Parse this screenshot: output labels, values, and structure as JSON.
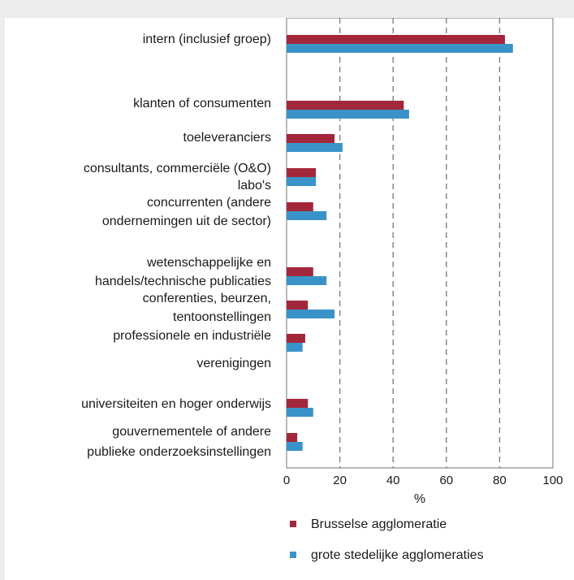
{
  "chart_data": {
    "type": "bar",
    "orientation": "horizontal",
    "xlabel": "%",
    "xlim": [
      0,
      100
    ],
    "xticks": [
      "0",
      "20",
      "40",
      "60",
      "80",
      "100"
    ],
    "grid": "vertical dashed",
    "legend_position": "bottom",
    "categories": [
      "intern (inclusief groep)",
      "klanten of consumenten",
      "toeleveranciers",
      "consultants, commerciële (O&O) labo's",
      "concurrenten (andere ondernemingen uit de sector)",
      "wetenschappelijke en handels/technische publicaties",
      "conferenties, beurzen, tentoonstellingen",
      "professionele en industriële verenigingen",
      "universiteiten en hoger onderwijs",
      "gouvernementele of andere publieke onderzoeksinstellingen"
    ],
    "category_label_lines": [
      [
        "intern (inclusief groep)"
      ],
      [
        "klanten of consumenten"
      ],
      [
        "toeleveranciers"
      ],
      [
        "consultants, commerciële (O&O)",
        "labo's"
      ],
      [
        "concurrenten (andere",
        "ondernemingen uit de sector)"
      ],
      [
        "wetenschappelijke en",
        "handels/technische publicaties"
      ],
      [
        "conferenties, beurzen,",
        "tentoonstellingen"
      ],
      [
        "professionele en industriële",
        "verenigingen"
      ],
      [
        "universiteiten en hoger onderwijs"
      ],
      [
        "gouvernementele of andere",
        "publieke onderzoeksinstellingen"
      ]
    ],
    "series": [
      {
        "name": "Brusselse agglomeratie",
        "color": "#a3273a",
        "values": [
          82,
          44,
          18,
          11,
          10,
          10,
          8,
          7,
          8,
          4
        ]
      },
      {
        "name": "grote stedelijke agglomeraties",
        "color": "#3a93c8",
        "values": [
          85,
          46,
          21,
          11,
          15,
          15,
          18,
          6,
          10,
          6
        ]
      }
    ]
  }
}
